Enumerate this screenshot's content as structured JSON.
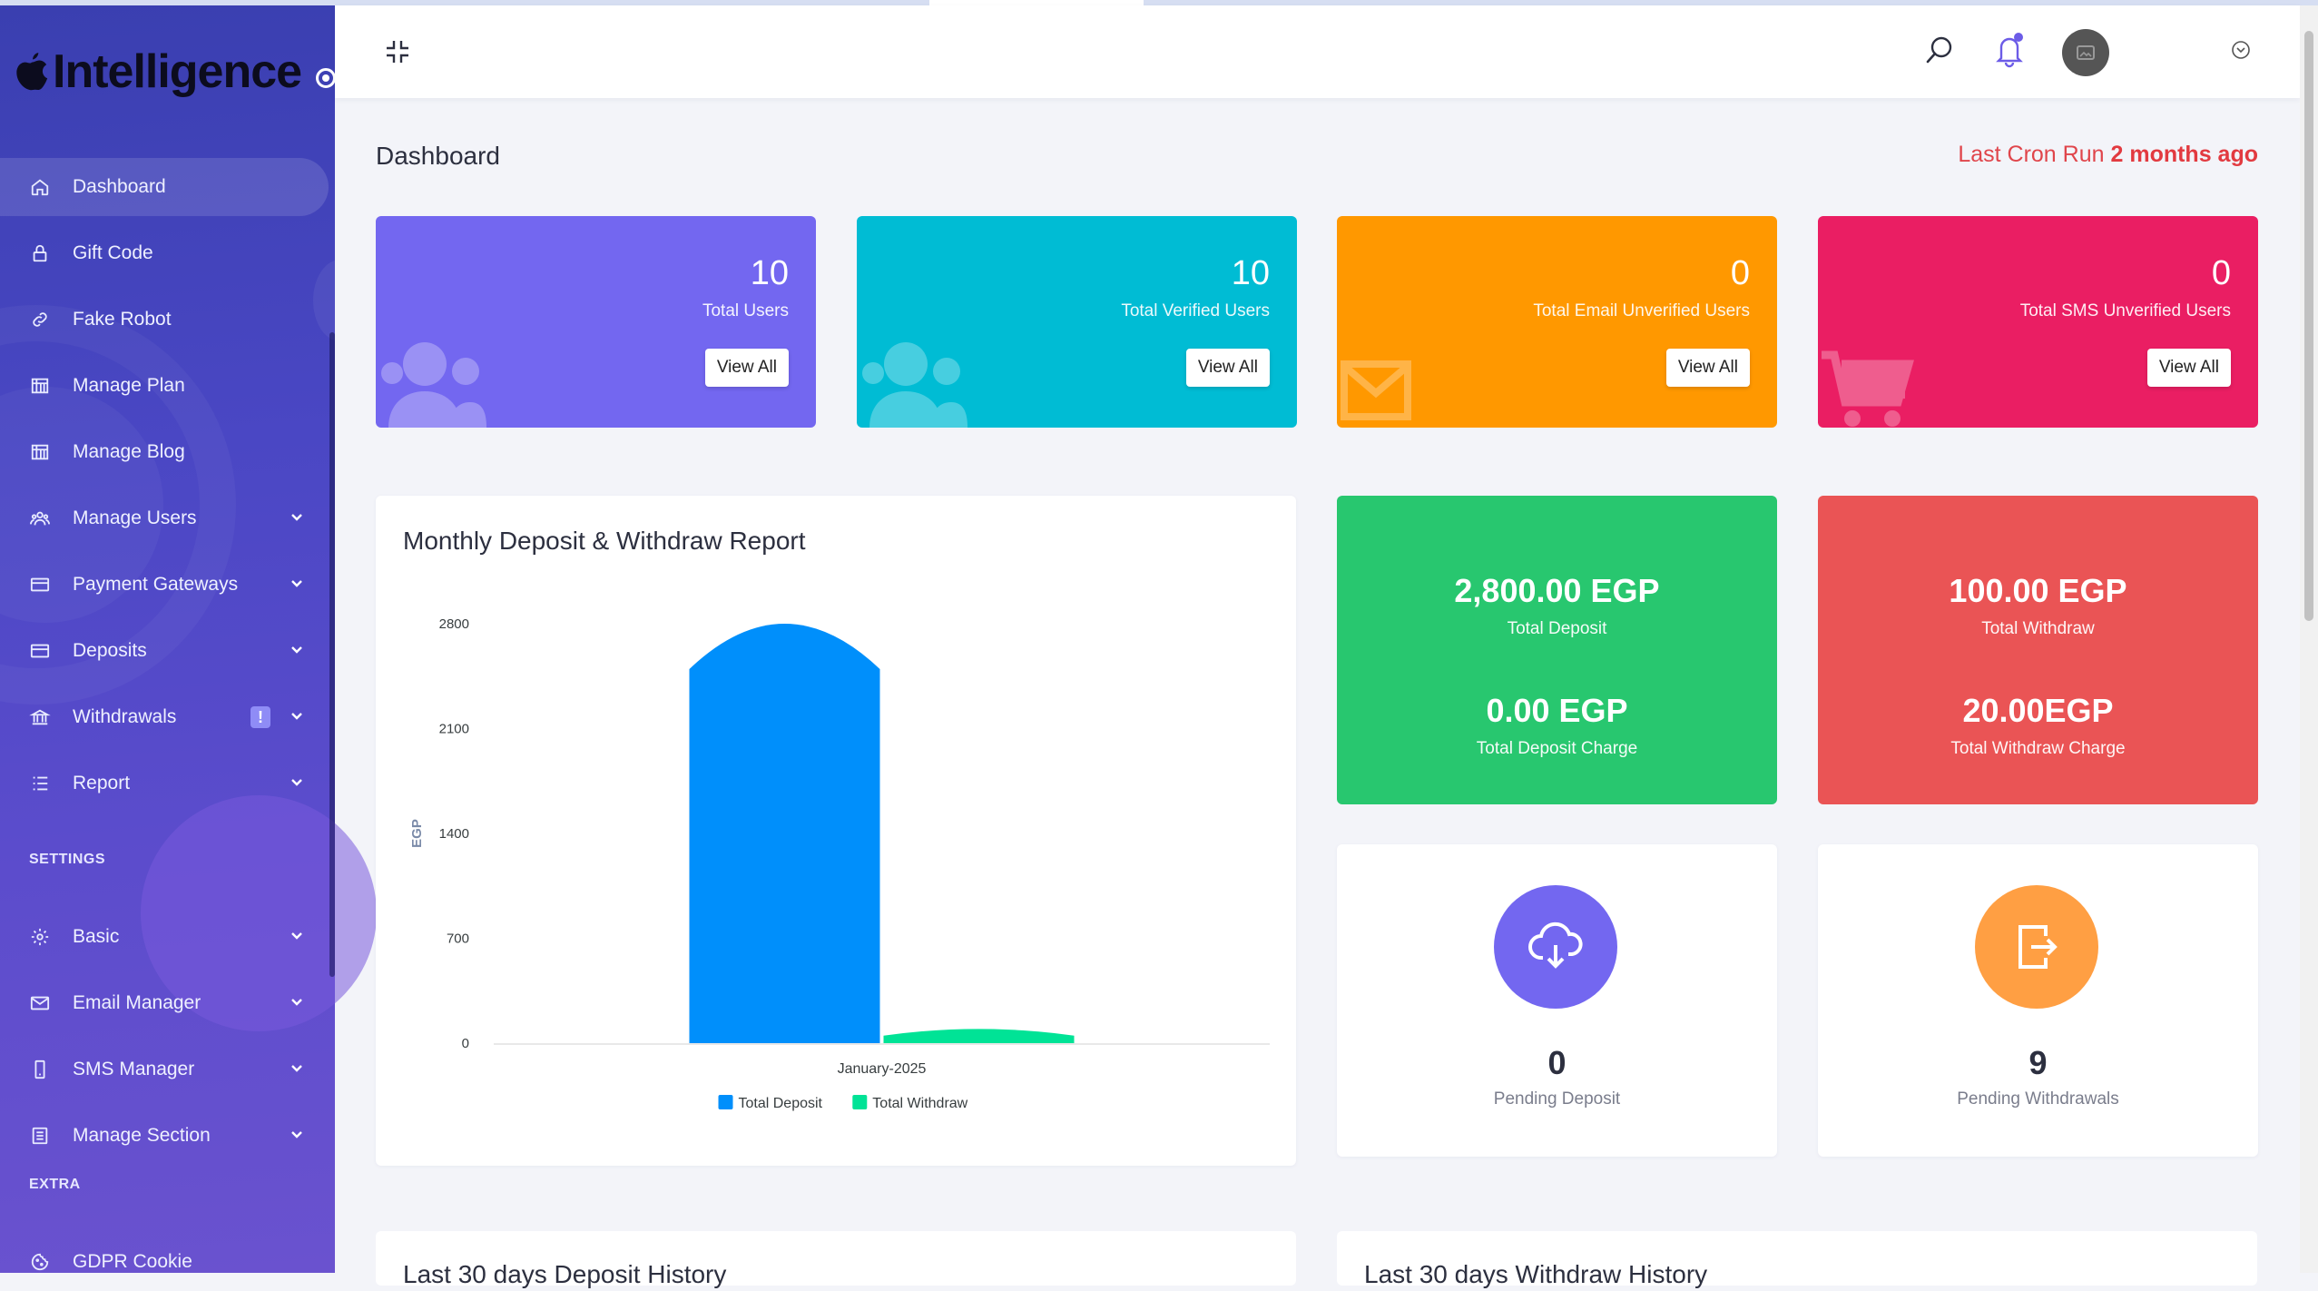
{
  "brand": {
    "name": "Intelligence"
  },
  "sidebar": {
    "items": [
      {
        "label": "Dashboard",
        "icon": "home-icon"
      },
      {
        "label": "Gift Code",
        "icon": "lock-icon"
      },
      {
        "label": "Fake Robot",
        "icon": "link-icon"
      },
      {
        "label": "Manage Plan",
        "icon": "building-icon"
      },
      {
        "label": "Manage Blog",
        "icon": "building-icon"
      },
      {
        "label": "Manage Users",
        "icon": "users-icon"
      },
      {
        "label": "Payment Gateways",
        "icon": "card-icon"
      },
      {
        "label": "Deposits",
        "icon": "card-icon"
      },
      {
        "label": "Withdrawals",
        "icon": "bank-icon",
        "badge": "!"
      },
      {
        "label": "Report",
        "icon": "list-icon"
      }
    ],
    "settings_title": "SETTINGS",
    "settings_items": [
      {
        "label": "Basic",
        "icon": "gear-icon"
      },
      {
        "label": "Email Manager",
        "icon": "mail-icon"
      },
      {
        "label": "SMS Manager",
        "icon": "phone-icon"
      },
      {
        "label": "Manage Section",
        "icon": "section-icon"
      }
    ],
    "extra_title": "EXTRA",
    "extra_items": [
      {
        "label": "GDPR Cookie",
        "icon": "cookie-icon"
      }
    ]
  },
  "page": {
    "title": "Dashboard",
    "cron_prefix": "Last Cron Run",
    "cron_value": "2 months ago"
  },
  "stats": [
    {
      "value": "10",
      "label": "Total Users",
      "button": "View All",
      "color": "#7367f0"
    },
    {
      "value": "10",
      "label": "Total Verified Users",
      "button": "View All",
      "color": "#00bcd4"
    },
    {
      "value": "0",
      "label": "Total Email Unverified Users",
      "button": "View All",
      "color": "#ff9800"
    },
    {
      "value": "0",
      "label": "Total SMS Unverified Users",
      "button": "View All",
      "color": "#ea1e63"
    }
  ],
  "chart_card": {
    "title": "Monthly Deposit & Withdraw Report"
  },
  "chart_data": {
    "type": "bar",
    "categories": [
      "January-2025"
    ],
    "series": [
      {
        "name": "Total Deposit",
        "values": [
          2800
        ],
        "color": "#008ffb"
      },
      {
        "name": "Total Withdraw",
        "values": [
          100
        ],
        "color": "#00e396"
      }
    ],
    "ylabel": "EGP",
    "ylim": [
      0,
      2800
    ],
    "yticks": [
      "0",
      "700",
      "1400",
      "2100",
      "2800"
    ],
    "legend": "bottom-center"
  },
  "deposit_summary": {
    "amount": "2,800.00 EGP",
    "label": "Total Deposit",
    "charge": "0.00 EGP",
    "charge_label": "Total Deposit Charge",
    "color": "#28c76f"
  },
  "withdraw_summary": {
    "amount": "100.00 EGP",
    "label": "Total Withdraw",
    "charge": "20.00EGP",
    "charge_label": "Total Withdraw Charge",
    "color": "#ea5455"
  },
  "pending": [
    {
      "value": "0",
      "label": "Pending Deposit",
      "color": "#7367f0",
      "icon": "cloud-download-icon"
    },
    {
      "value": "9",
      "label": "Pending Withdrawals",
      "color": "#ff9f43",
      "icon": "exit-icon"
    }
  ],
  "history": {
    "deposit_title": "Last 30 days Deposit History",
    "withdraw_title": "Last 30 days Withdraw History"
  }
}
